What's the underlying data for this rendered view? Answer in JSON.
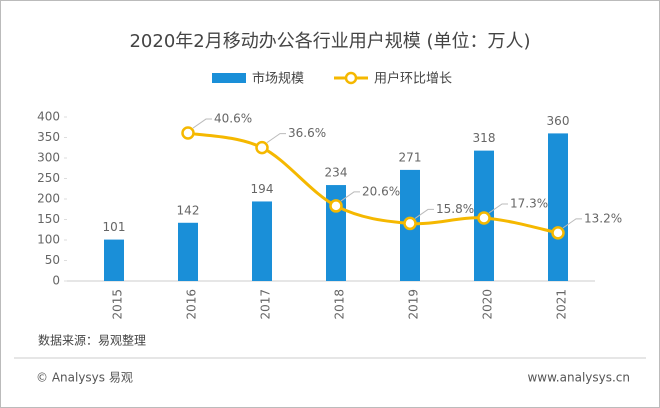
{
  "chart_data": {
    "type": "bar-line",
    "title": "2020年2月移动办公各行业用户规模 (单位：万人)",
    "categories": [
      "2015",
      "2016",
      "2017",
      "2018",
      "2019",
      "2020",
      "2021"
    ],
    "series": [
      {
        "name": "市场规模",
        "type": "bar",
        "color": "#1a8fd8",
        "values": [
          101,
          142,
          194,
          234,
          271,
          318,
          360
        ]
      },
      {
        "name": "用户环比增长",
        "type": "line",
        "color": "#f5b800",
        "axis": "y2",
        "values": [
          null,
          40.6,
          36.6,
          20.6,
          15.8,
          17.3,
          13.2
        ],
        "value_labels": [
          null,
          "40.6%",
          "36.6%",
          "20.6%",
          "15.8%",
          "17.3%",
          "13.2%"
        ]
      }
    ],
    "ylim": [
      0,
      400
    ],
    "yticks": [
      0,
      50,
      100,
      150,
      200,
      250,
      300,
      350,
      400
    ],
    "y2lim": [
      0,
      45
    ],
    "source": "数据来源：易观整理",
    "footer_left": "© Analysys 易观",
    "footer_right": "www.analysys.cn"
  }
}
